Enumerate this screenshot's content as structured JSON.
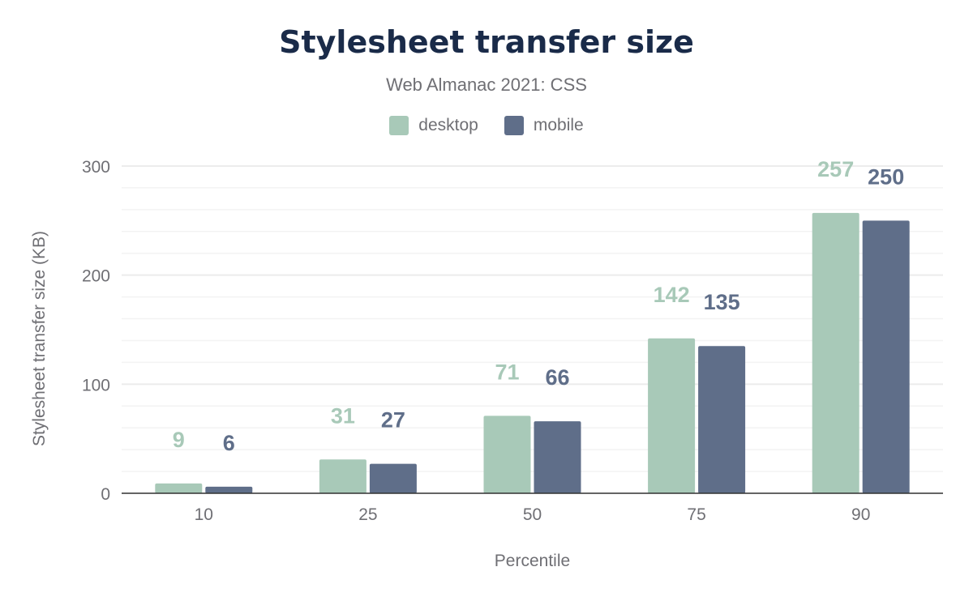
{
  "chart_data": {
    "type": "bar",
    "title": "Stylesheet transfer size",
    "subtitle": "Web Almanac 2021: CSS",
    "xlabel": "Percentile",
    "ylabel": "Stylesheet transfer size (KB)",
    "categories": [
      "10",
      "25",
      "50",
      "75",
      "90"
    ],
    "series": [
      {
        "name": "desktop",
        "color": "#a8c9b8",
        "values": [
          9,
          31,
          71,
          142,
          257
        ]
      },
      {
        "name": "mobile",
        "color": "#5f6e89",
        "values": [
          6,
          27,
          66,
          135,
          250
        ]
      }
    ],
    "ylim": [
      0,
      300
    ],
    "yticks": [
      "0",
      "100",
      "200",
      "300"
    ],
    "grid": true,
    "legend": "top"
  }
}
